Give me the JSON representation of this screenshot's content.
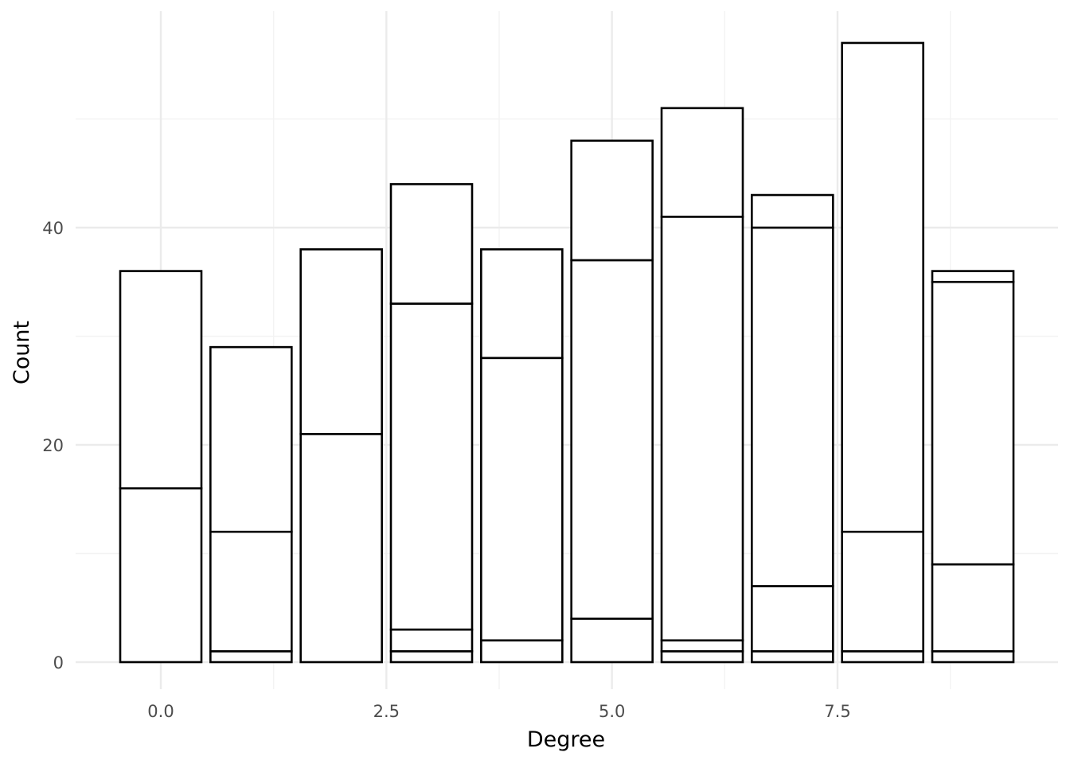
{
  "chart_data": {
    "type": "bar",
    "stacked": true,
    "title": "",
    "xlabel": "Degree",
    "ylabel": "Count",
    "xlim": [
      -0.5,
      9.5
    ],
    "ylim": [
      0,
      58
    ],
    "x_ticks": [
      0,
      2.5,
      5,
      7.5
    ],
    "x_tick_labels": [
      "0.0",
      "2.5",
      "5.0",
      "7.5"
    ],
    "y_ticks": [
      0,
      20,
      40
    ],
    "y_tick_labels": [
      "0",
      "20",
      "40"
    ],
    "grid": true,
    "legend": "none",
    "bar_width": 0.9,
    "fill_color": "#ffffff",
    "outline_color": "#000000",
    "bars": [
      {
        "x": 0,
        "boundaries": [
          16,
          36
        ]
      },
      {
        "x": 1,
        "boundaries": [
          1,
          12,
          29
        ]
      },
      {
        "x": 2,
        "boundaries": [
          21,
          38
        ]
      },
      {
        "x": 3,
        "boundaries": [
          1,
          3,
          33,
          44
        ]
      },
      {
        "x": 4,
        "boundaries": [
          2,
          28,
          38
        ]
      },
      {
        "x": 5,
        "boundaries": [
          4,
          37,
          48
        ]
      },
      {
        "x": 6,
        "boundaries": [
          1,
          2,
          41,
          51
        ]
      },
      {
        "x": 7,
        "boundaries": [
          1,
          7,
          40,
          43
        ]
      },
      {
        "x": 8,
        "boundaries": [
          1,
          12,
          57
        ]
      },
      {
        "x": 9,
        "boundaries": [
          1,
          9,
          35,
          36
        ]
      }
    ]
  }
}
